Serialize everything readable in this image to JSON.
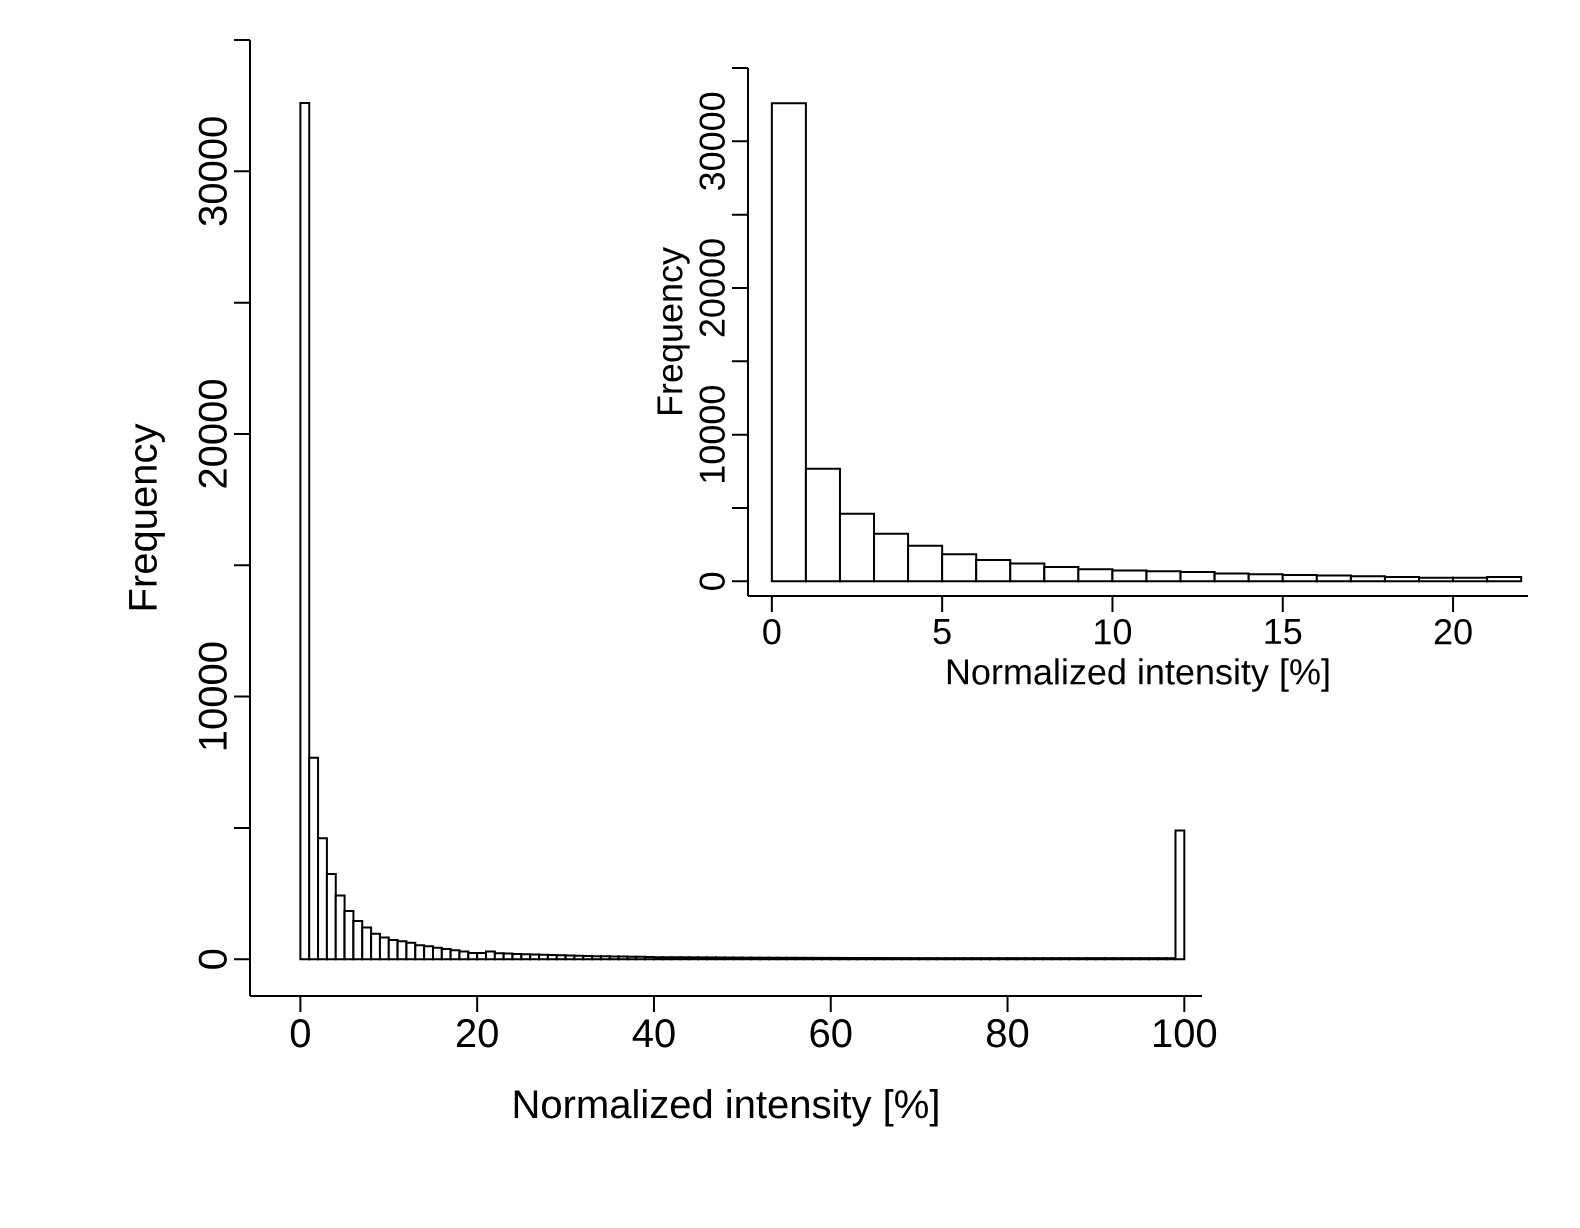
{
  "chart_data": [
    {
      "type": "histogram",
      "xlabel": "Normalized intensity [%]",
      "ylabel": "Frequency",
      "bins": [
        0,
        1,
        2,
        3,
        4,
        5,
        6,
        7,
        8,
        9,
        10,
        11,
        12,
        13,
        14,
        15,
        16,
        17,
        18,
        19,
        20,
        21,
        22,
        23,
        24,
        25,
        26,
        27,
        28,
        29,
        30,
        31,
        32,
        33,
        34,
        35,
        36,
        37,
        38,
        39,
        40,
        41,
        42,
        43,
        44,
        45,
        46,
        47,
        48,
        49,
        50,
        51,
        52,
        53,
        54,
        55,
        56,
        57,
        58,
        59,
        60,
        61,
        62,
        63,
        64,
        65,
        66,
        67,
        68,
        69,
        70,
        71,
        72,
        73,
        74,
        75,
        76,
        77,
        78,
        79,
        80,
        81,
        82,
        83,
        84,
        85,
        86,
        87,
        88,
        89,
        90,
        91,
        92,
        93,
        94,
        95,
        96,
        97,
        98,
        99,
        100
      ],
      "values": [
        32600,
        7670,
        4610,
        3250,
        2430,
        1840,
        1460,
        1210,
        970,
        830,
        730,
        680,
        630,
        530,
        490,
        440,
        390,
        340,
        290,
        240,
        240,
        290,
        230,
        220,
        200,
        190,
        180,
        170,
        160,
        150,
        140,
        130,
        120,
        115,
        110,
        105,
        100,
        95,
        90,
        85,
        80,
        78,
        76,
        74,
        72,
        70,
        68,
        66,
        64,
        62,
        60,
        59,
        58,
        57,
        56,
        55,
        54,
        53,
        52,
        51,
        50,
        49,
        48,
        47,
        46,
        45,
        44,
        43,
        42,
        41,
        40,
        40,
        40,
        40,
        40,
        40,
        40,
        40,
        40,
        40,
        40,
        40,
        40,
        40,
        40,
        40,
        40,
        40,
        40,
        40,
        40,
        40,
        40,
        40,
        40,
        40,
        40,
        40,
        40,
        4900
      ],
      "xlim": [
        -5.7,
        102
      ],
      "ylim": [
        -1400,
        35000
      ],
      "xticks": [
        0,
        20,
        40,
        60,
        80,
        100
      ],
      "yticks": [
        0,
        {
          "value": 5000,
          "label": null
        },
        10000,
        {
          "value": 15000,
          "label": null
        },
        20000,
        {
          "value": 25000,
          "label": null
        },
        30000,
        {
          "value": 35000,
          "label": null
        }
      ]
    },
    {
      "type": "histogram",
      "xlabel": "Normalized intensity [%]",
      "ylabel": "Frequency",
      "bins": [
        0,
        1,
        2,
        3,
        4,
        5,
        6,
        7,
        8,
        9,
        10,
        11,
        12,
        13,
        14,
        15,
        16,
        17,
        18,
        19,
        20,
        21,
        22
      ],
      "values": [
        32600,
        7670,
        4610,
        3250,
        2430,
        1840,
        1460,
        1210,
        970,
        830,
        730,
        680,
        630,
        530,
        490,
        440,
        390,
        340,
        290,
        240,
        240,
        290
      ],
      "xlim": [
        -0.7,
        22.2
      ],
      "ylim": [
        -1000,
        35000
      ],
      "xticks": [
        0,
        5,
        10,
        15,
        20
      ],
      "yticks": [
        0,
        {
          "value": 5000,
          "label": null
        },
        10000,
        {
          "value": 15000,
          "label": null
        },
        20000,
        {
          "value": 25000,
          "label": null
        },
        30000,
        {
          "value": 35000,
          "label": null
        }
      ]
    }
  ]
}
